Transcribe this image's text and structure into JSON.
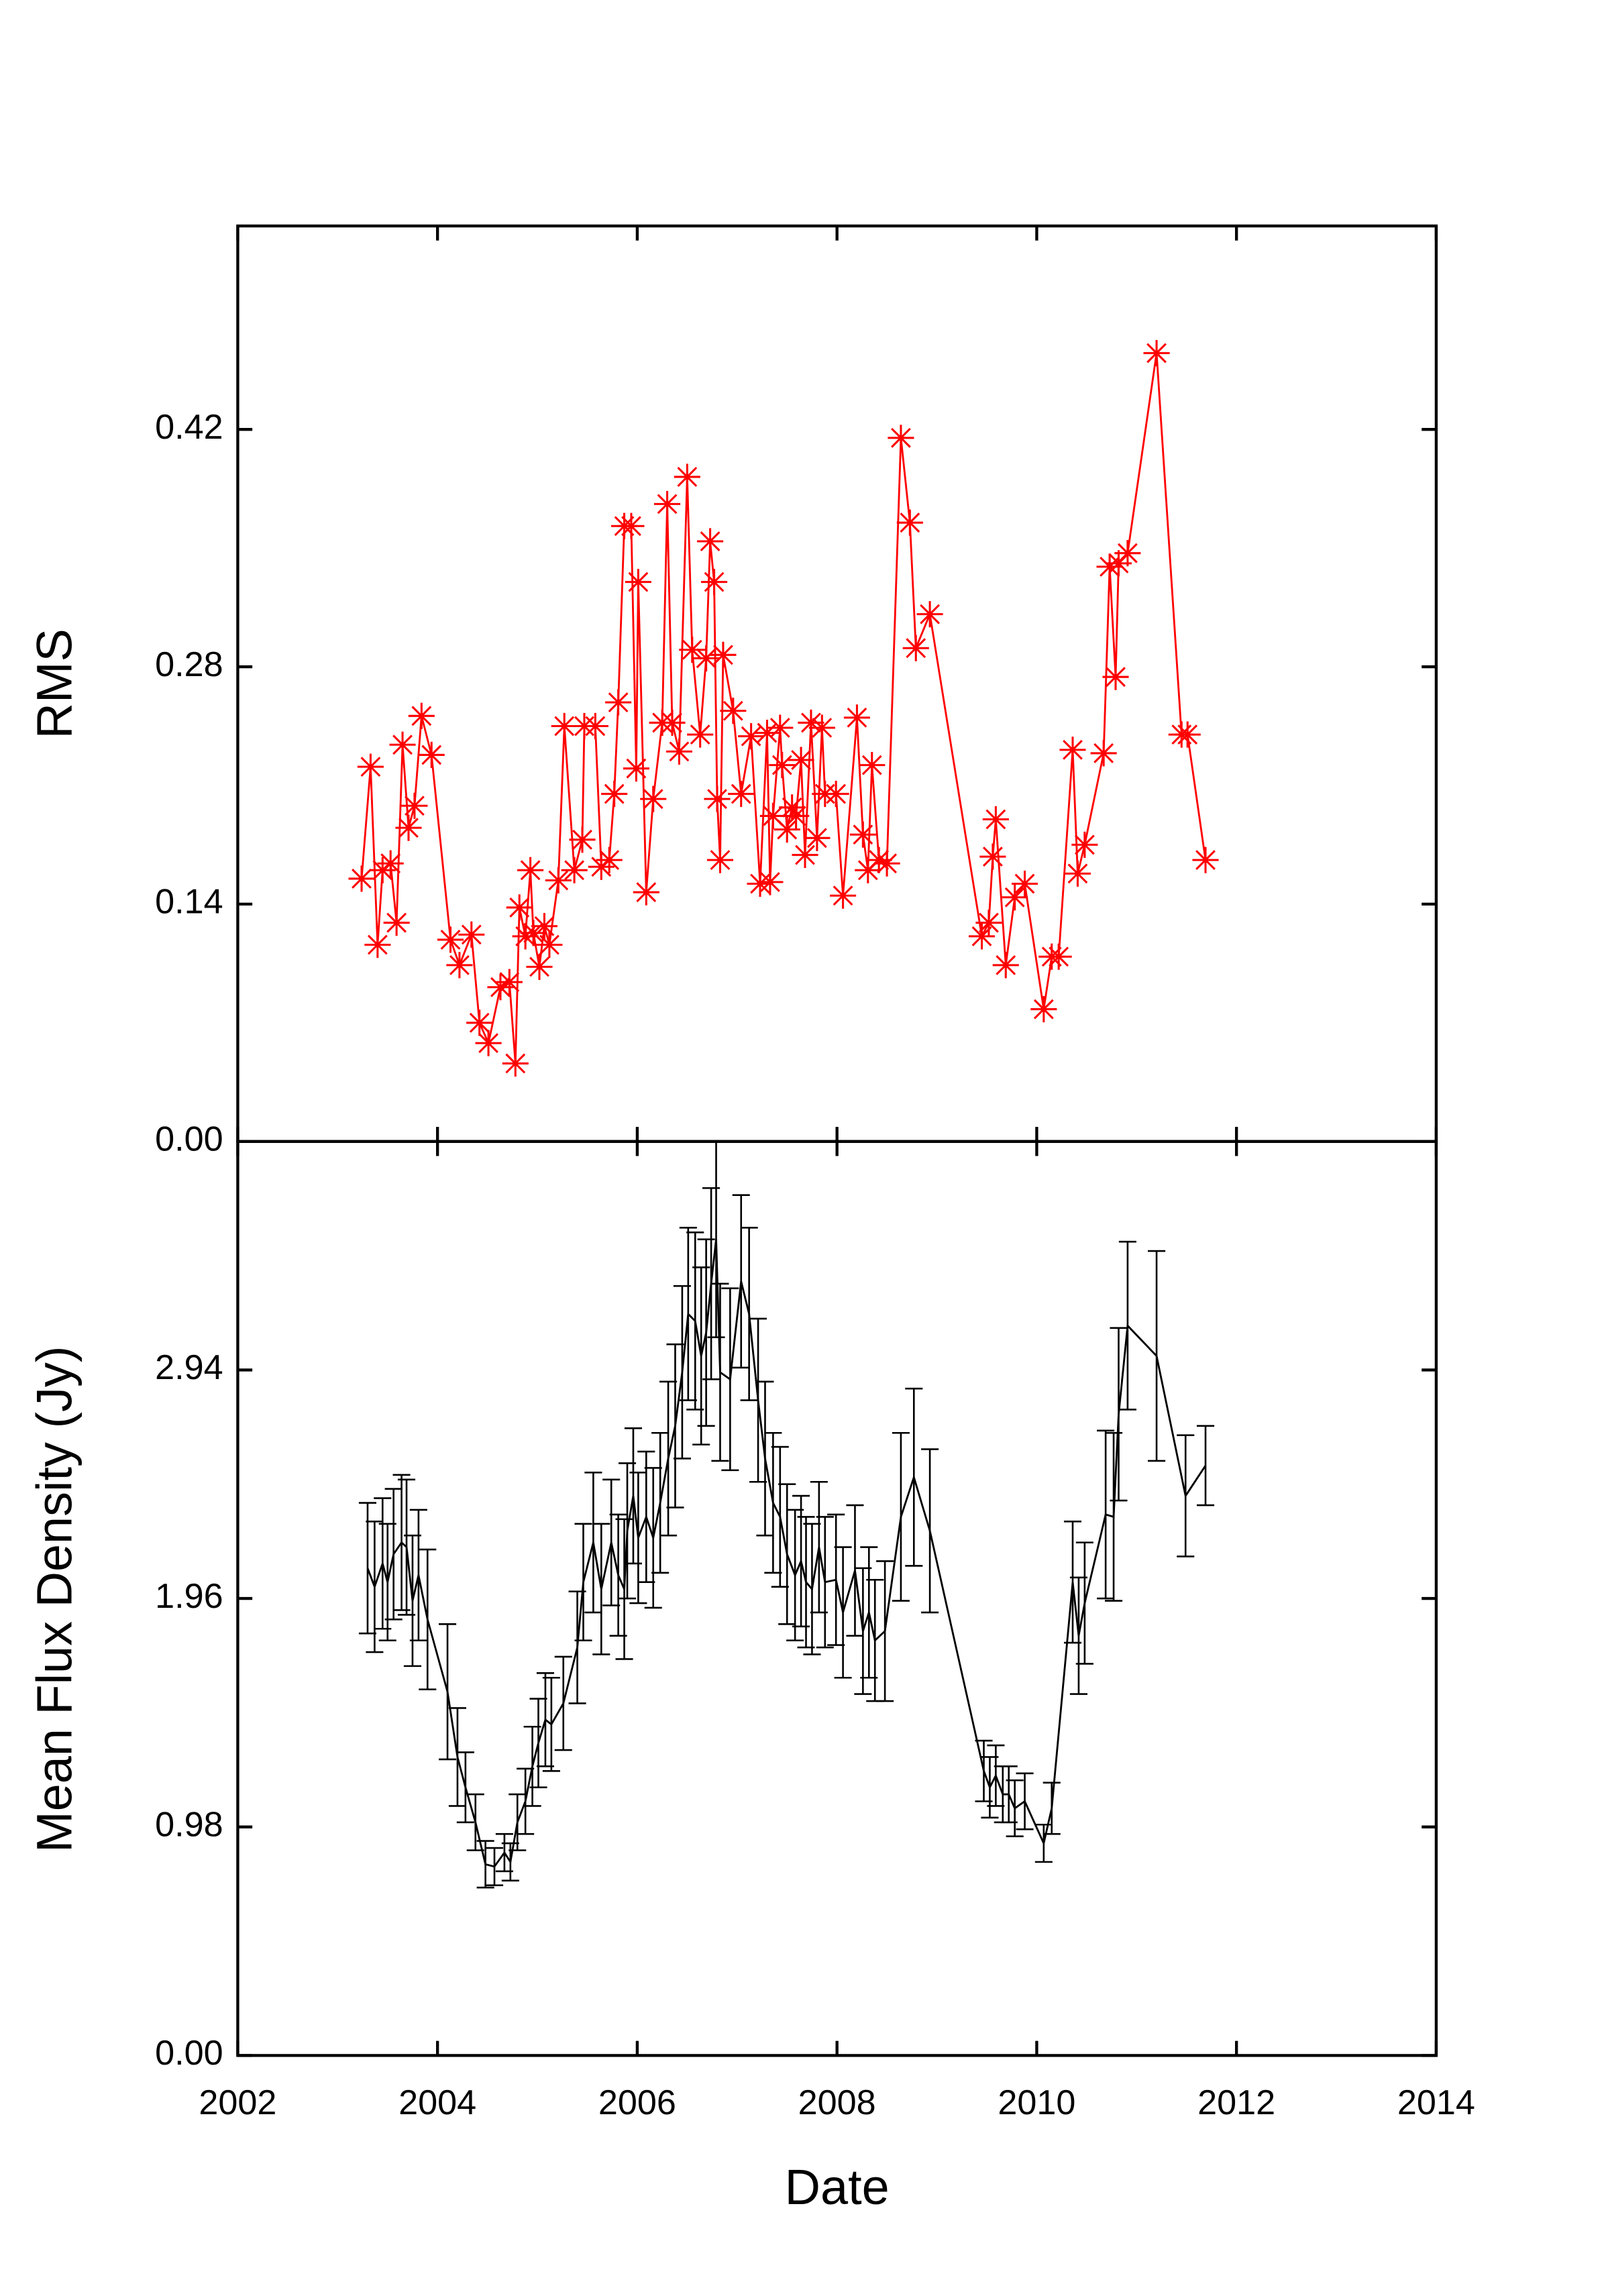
{
  "chart_data": [
    {
      "type": "line",
      "ylabel": "RMS",
      "color": "#ff0000",
      "marker": "star",
      "xlim": [
        2002,
        2014
      ],
      "xticks": [
        2002,
        2004,
        2006,
        2008,
        2010,
        2012,
        2014
      ],
      "ylim": [
        0,
        0.54
      ],
      "yticks": [
        {
          "value": 0,
          "label": "0.00"
        },
        0.14,
        0.28,
        0.42
      ],
      "x": [
        2003.24,
        2003.33,
        2003.4,
        2003.45,
        2003.53,
        2003.59,
        2003.65,
        2003.71,
        2003.77,
        2003.84,
        2003.94,
        2004.13,
        2004.22,
        2004.34,
        2004.42,
        2004.51,
        2004.63,
        2004.72,
        2004.78,
        2004.82,
        2004.88,
        2004.93,
        2004.96,
        2005.02,
        2005.07,
        2005.12,
        2005.21,
        2005.27,
        2005.37,
        2005.45,
        2005.47,
        2005.58,
        2005.64,
        2005.72,
        2005.77,
        2005.81,
        2005.87,
        2005.94,
        2005.99,
        2006.01,
        2006.09,
        2006.16,
        2006.25,
        2006.3,
        2006.35,
        2006.42,
        2006.5,
        2006.55,
        2006.63,
        2006.69,
        2006.73,
        2006.77,
        2006.8,
        2006.83,
        2006.86,
        2006.96,
        2007.04,
        2007.14,
        2007.23,
        2007.3,
        2007.33,
        2007.36,
        2007.43,
        2007.45,
        2007.5,
        2007.55,
        2007.59,
        2007.64,
        2007.68,
        2007.74,
        2007.8,
        2007.85,
        2007.88,
        2007.99,
        2008.06,
        2008.2,
        2008.26,
        2008.31,
        2008.35,
        2008.42,
        2008.5,
        2008.64,
        2008.73,
        2008.79,
        2008.93,
        2009.45,
        2009.52,
        2009.56,
        2009.59,
        2009.69,
        2009.78,
        2009.88,
        2010.07,
        2010.15,
        2010.22,
        2010.36,
        2010.41,
        2010.48,
        2010.67,
        2010.73,
        2010.79,
        2010.82,
        2010.91,
        2011.2,
        2011.45,
        2011.51,
        2011.69
      ],
      "values": [
        0.155,
        0.221,
        0.116,
        0.16,
        0.164,
        0.129,
        0.234,
        0.185,
        0.198,
        0.251,
        0.228,
        0.119,
        0.104,
        0.122,
        0.07,
        0.058,
        0.091,
        0.094,
        0.046,
        0.138,
        0.121,
        0.16,
        0.123,
        0.103,
        0.127,
        0.116,
        0.154,
        0.245,
        0.16,
        0.178,
        0.245,
        0.245,
        0.162,
        0.166,
        0.205,
        0.259,
        0.363,
        0.363,
        0.22,
        0.33,
        0.147,
        0.202,
        0.247,
        0.376,
        0.247,
        0.23,
        0.392,
        0.29,
        0.24,
        0.285,
        0.354,
        0.33,
        0.202,
        0.166,
        0.287,
        0.254,
        0.205,
        0.239,
        0.152,
        0.241,
        0.153,
        0.192,
        0.244,
        0.222,
        0.184,
        0.197,
        0.192,
        0.225,
        0.169,
        0.247,
        0.179,
        0.244,
        0.205,
        0.205,
        0.145,
        0.25,
        0.181,
        0.16,
        0.222,
        0.166,
        0.164,
        0.415,
        0.365,
        0.291,
        0.311,
        0.121,
        0.129,
        0.168,
        0.19,
        0.104,
        0.144,
        0.152,
        0.078,
        0.109,
        0.109,
        0.231,
        0.158,
        0.175,
        0.229,
        0.339,
        0.274,
        0.341,
        0.347,
        0.465,
        0.24,
        0.24,
        0.166
      ]
    },
    {
      "type": "line",
      "xlabel": "Date",
      "ylabel": "Mean Flux Density (Jy)",
      "color": "#000000",
      "marker": "errorbar",
      "xlim": [
        2002,
        2014
      ],
      "xticks": [
        2002,
        2004,
        2006,
        2008,
        2010,
        2012,
        2014
      ],
      "ylim": [
        0,
        3.92
      ],
      "yticks": [
        {
          "value": 0,
          "label": "0.00"
        },
        0.98,
        1.96,
        2.94
      ],
      "x": [
        2003.3,
        2003.37,
        2003.45,
        2003.5,
        2003.56,
        2003.64,
        2003.69,
        2003.75,
        2003.81,
        2003.9,
        2004.1,
        2004.2,
        2004.28,
        2004.38,
        2004.48,
        2004.57,
        2004.67,
        2004.73,
        2004.8,
        2004.88,
        2004.95,
        2005.01,
        2005.08,
        2005.14,
        2005.26,
        2005.4,
        2005.46,
        2005.56,
        2005.64,
        2005.74,
        2005.81,
        2005.87,
        2005.9,
        2005.96,
        2006.01,
        2006.09,
        2006.16,
        2006.23,
        2006.31,
        2006.38,
        2006.45,
        2006.51,
        2006.58,
        2006.64,
        2006.69,
        2006.74,
        2006.79,
        2006.83,
        2006.93,
        2007.04,
        2007.12,
        2007.21,
        2007.28,
        2007.36,
        2007.43,
        2007.5,
        2007.58,
        2007.64,
        2007.69,
        2007.75,
        2007.82,
        2007.88,
        2007.99,
        2008.06,
        2008.18,
        2008.26,
        2008.32,
        2008.38,
        2008.48,
        2008.64,
        2008.77,
        2008.93,
        2009.47,
        2009.53,
        2009.59,
        2009.66,
        2009.72,
        2009.78,
        2009.88,
        2010.07,
        2010.15,
        2010.36,
        2010.42,
        2010.48,
        2010.69,
        2010.77,
        2010.82,
        2010.91,
        2011.2,
        2011.49,
        2011.69
      ],
      "values": [
        2.09,
        2.01,
        2.11,
        2.03,
        2.15,
        2.2,
        2.18,
        1.95,
        2.06,
        1.87,
        1.56,
        1.28,
        1.15,
        1.0,
        0.82,
        0.81,
        0.87,
        0.83,
        1.0,
        1.09,
        1.24,
        1.34,
        1.44,
        1.42,
        1.51,
        1.75,
        2.03,
        2.2,
        2.0,
        2.2,
        2.06,
        2.0,
        2.25,
        2.4,
        2.22,
        2.31,
        2.22,
        2.37,
        2.56,
        2.7,
        2.93,
        3.18,
        3.15,
        3.0,
        3.1,
        3.31,
        3.5,
        2.93,
        2.9,
        3.32,
        3.18,
        2.81,
        2.56,
        2.37,
        2.31,
        2.15,
        2.06,
        2.12,
        2.03,
        2.0,
        2.18,
        2.03,
        2.04,
        1.9,
        2.08,
        1.82,
        1.9,
        1.78,
        1.82,
        2.31,
        2.48,
        2.25,
        1.22,
        1.15,
        1.2,
        1.12,
        1.12,
        1.06,
        1.09,
        0.91,
        1.06,
        2.03,
        1.8,
        1.94,
        2.32,
        2.31,
        2.75,
        3.13,
        3.0,
        2.4,
        2.53
      ],
      "errors": [
        0.28,
        0.28,
        0.28,
        0.25,
        0.28,
        0.29,
        0.29,
        0.28,
        0.28,
        0.3,
        0.29,
        0.21,
        0.15,
        0.12,
        0.1,
        0.08,
        0.08,
        0.08,
        0.12,
        0.14,
        0.17,
        0.19,
        0.2,
        0.2,
        0.2,
        0.24,
        0.25,
        0.3,
        0.28,
        0.27,
        0.26,
        0.3,
        0.29,
        0.29,
        0.28,
        0.28,
        0.3,
        0.3,
        0.33,
        0.35,
        0.37,
        0.37,
        0.38,
        0.38,
        0.4,
        0.41,
        0.42,
        0.38,
        0.39,
        0.37,
        0.37,
        0.35,
        0.33,
        0.3,
        0.3,
        0.3,
        0.28,
        0.28,
        0.28,
        0.28,
        0.28,
        0.28,
        0.28,
        0.28,
        0.28,
        0.27,
        0.28,
        0.26,
        0.3,
        0.36,
        0.38,
        0.35,
        0.13,
        0.13,
        0.13,
        0.12,
        0.12,
        0.12,
        0.12,
        0.08,
        0.11,
        0.26,
        0.25,
        0.26,
        0.36,
        0.36,
        0.37,
        0.36,
        0.45,
        0.26,
        0.17
      ]
    }
  ]
}
